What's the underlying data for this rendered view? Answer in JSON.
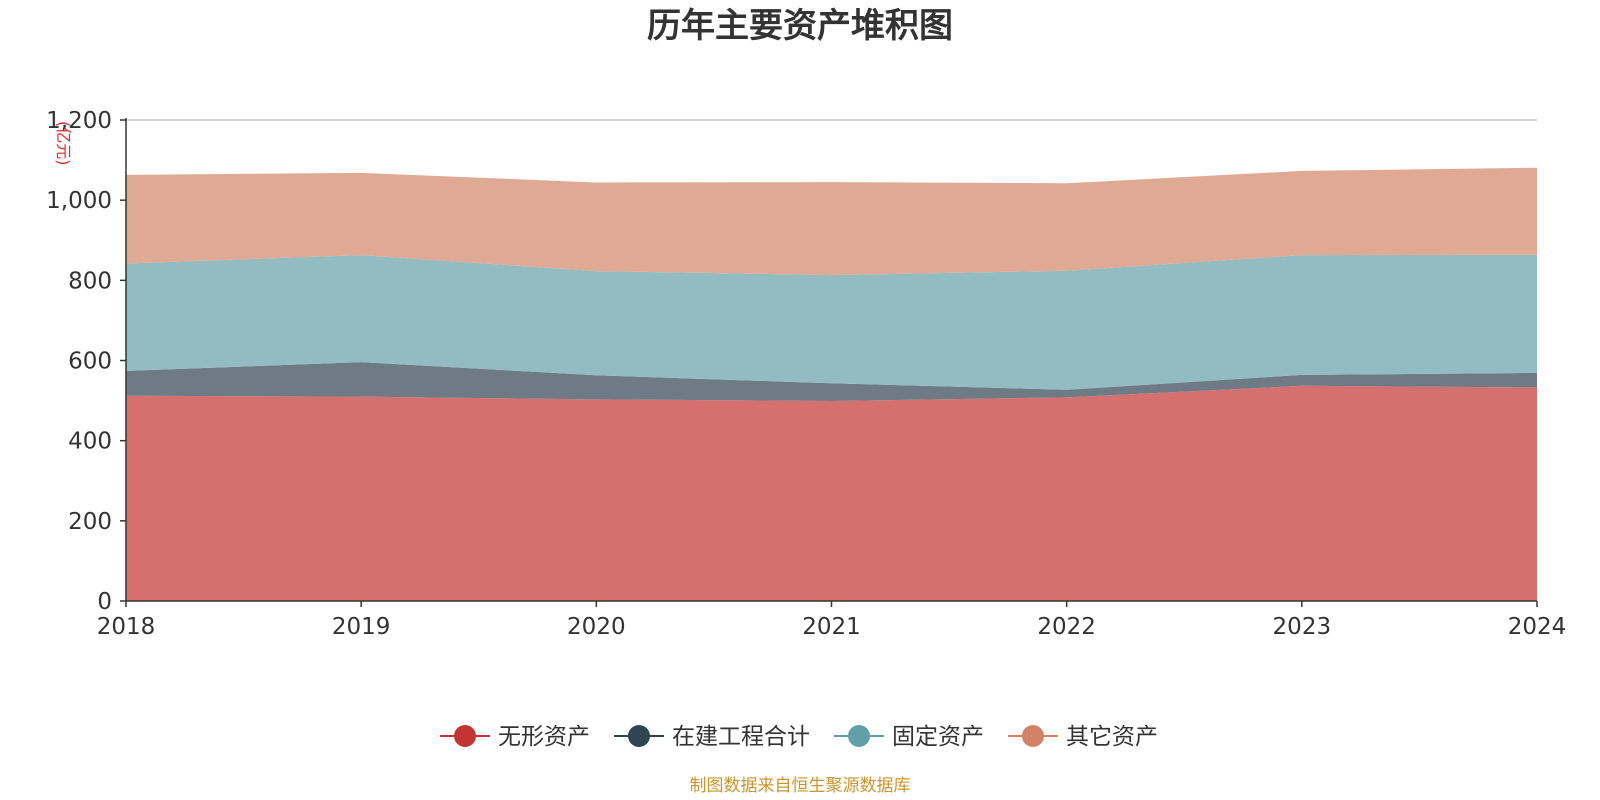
{
  "chart_data": {
    "type": "area",
    "stacked": true,
    "title": "历年主要资产堆积图",
    "unit_label": "(亿元)",
    "xlabel": "",
    "ylabel": "亿元",
    "categories": [
      "2018",
      "2019",
      "2020",
      "2021",
      "2022",
      "2023",
      "2024"
    ],
    "ylim": [
      0,
      1200
    ],
    "yticks": [
      0,
      200,
      400,
      600,
      800,
      1000,
      1200
    ],
    "ytick_labels": [
      "0",
      "200",
      "400",
      "600",
      "800",
      "1,000",
      "1,200"
    ],
    "grid": true,
    "legend_position": "bottom-center",
    "series": [
      {
        "name": "无形资产",
        "color": "#d6706e",
        "marker_color": "#c23531",
        "values": [
          512,
          510,
          503,
          499,
          508,
          537,
          533
        ]
      },
      {
        "name": "在建工程合计",
        "color": "#6e7b87",
        "marker_color": "#2f4554",
        "values": [
          62,
          86,
          60,
          44,
          19,
          27,
          36
        ]
      },
      {
        "name": "固定资产",
        "color": "#93bcc2",
        "marker_color": "#61a0a8",
        "values": [
          268,
          267,
          260,
          270,
          297,
          299,
          295
        ]
      },
      {
        "name": "其它资产",
        "color": "#e0a994",
        "marker_color": "#d48265",
        "values": [
          221,
          205,
          221,
          232,
          218,
          210,
          217
        ]
      }
    ],
    "source": "制图数据来自恒生聚源数据库"
  }
}
